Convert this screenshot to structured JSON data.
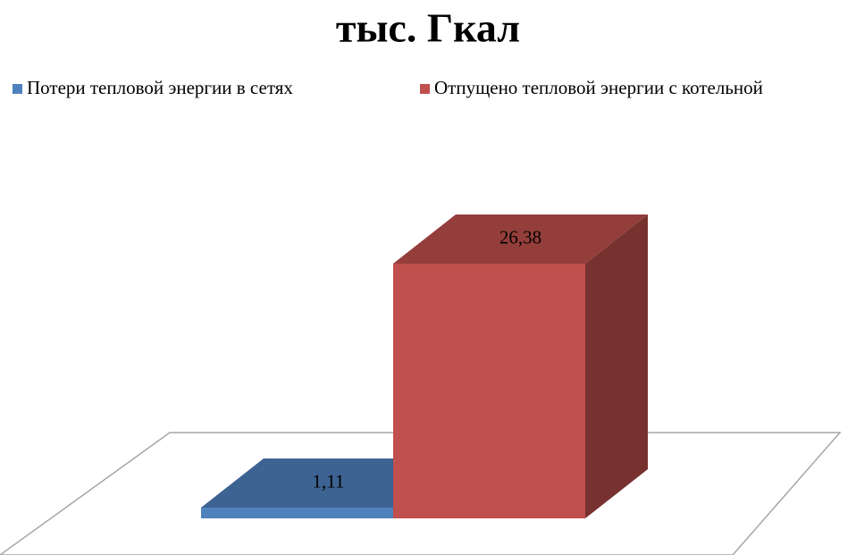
{
  "chart_data": {
    "type": "bar",
    "title": "тыс. Гкал",
    "series": [
      {
        "name": "Потери тепловой энергии в сетях",
        "color": "#4f81bd",
        "values": [
          1.11
        ],
        "value_labels": [
          "1,11"
        ]
      },
      {
        "name": "Отпущено тепловой энергии с котельной",
        "color": "#c0504d",
        "values": [
          26.38
        ],
        "value_labels": [
          "26,38"
        ]
      }
    ],
    "legend": "top"
  }
}
